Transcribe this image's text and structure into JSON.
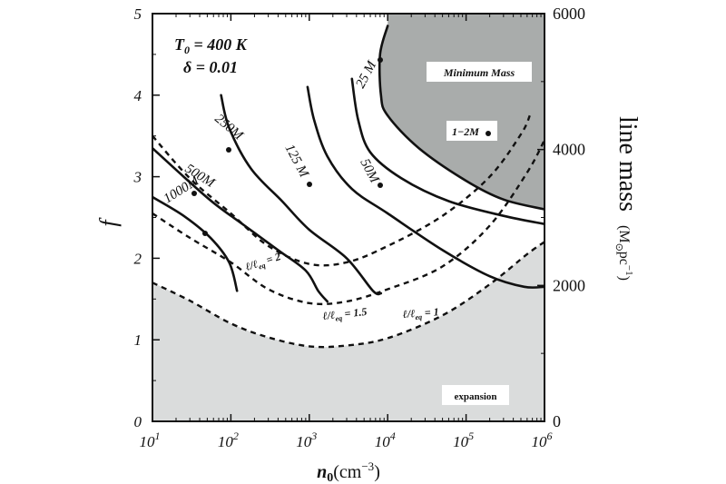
{
  "chart_data": {
    "type": "line",
    "x_scale": "log",
    "xlim": [
      10,
      1000000
    ],
    "ylim": [
      0,
      5
    ],
    "y2lim": [
      0,
      6000
    ],
    "xticks": [
      10,
      100,
      1000,
      10000,
      100000,
      1000000
    ],
    "xtick_labels": [
      {
        "base": "10",
        "exp": "1"
      },
      {
        "base": "10",
        "exp": "2"
      },
      {
        "base": "10",
        "exp": "3"
      },
      {
        "base": "10",
        "exp": "4"
      },
      {
        "base": "10",
        "exp": "5"
      },
      {
        "base": "10",
        "exp": "6"
      }
    ],
    "yticks": [
      "0",
      "1",
      "2",
      "3",
      "4",
      "5"
    ],
    "y2ticks": [
      "0",
      "2000",
      "4000",
      "6000"
    ],
    "xlabel": {
      "var": "n",
      "sub": "0",
      "unit": "(cm",
      "unitexp": "−3",
      "close": ")"
    },
    "ylabel": "f",
    "y2label": {
      "main": "line mass",
      "unit": "(M",
      "unit_sub": "⊙",
      "unit_rest": "pc",
      "unit_exp": "−1",
      "close": ")"
    },
    "params": {
      "t0_prefix": "T",
      "t0_sub": "0",
      "t0_value": " = 400 K",
      "delta_text": "δ =  0.01"
    },
    "annotations": {
      "minimum_mass": "Minimum Mass",
      "one_two": "1−2M",
      "expansion": "expansion"
    },
    "mass_curves": [
      {
        "label": "25 M",
        "points": [
          [
            10000,
            4.85
          ],
          [
            8000,
            4.5
          ],
          [
            8200,
            4.0
          ],
          [
            10000,
            3.75
          ],
          [
            25000,
            3.35
          ],
          [
            100000,
            2.95
          ],
          [
            300000,
            2.72
          ],
          [
            1000000,
            2.6
          ]
        ]
      },
      {
        "label": "50M",
        "points": [
          [
            3500,
            4.2
          ],
          [
            4200,
            3.7
          ],
          [
            6000,
            3.3
          ],
          [
            15000,
            2.98
          ],
          [
            60000,
            2.7
          ],
          [
            300000,
            2.52
          ],
          [
            1000000,
            2.42
          ]
        ]
      },
      {
        "label": "125 M",
        "points": [
          [
            950,
            4.1
          ],
          [
            1150,
            3.7
          ],
          [
            1700,
            3.25
          ],
          [
            3500,
            2.85
          ],
          [
            10000,
            2.55
          ],
          [
            50000,
            2.1
          ],
          [
            200000,
            1.78
          ],
          [
            550000,
            1.65
          ],
          [
            1000000,
            1.65
          ]
        ]
      },
      {
        "label": "250M",
        "points": [
          [
            75,
            4.0
          ],
          [
            95,
            3.6
          ],
          [
            180,
            3.1
          ],
          [
            450,
            2.7
          ],
          [
            1000,
            2.35
          ],
          [
            3000,
            2.0
          ],
          [
            6500,
            1.6
          ],
          [
            8200,
            1.57
          ]
        ]
      },
      {
        "label": "500M",
        "points": [
          [
            10,
            3.35
          ],
          [
            25,
            3.0
          ],
          [
            60,
            2.68
          ],
          [
            150,
            2.4
          ],
          [
            400,
            2.1
          ],
          [
            900,
            1.85
          ],
          [
            1300,
            1.6
          ],
          [
            1700,
            1.47
          ]
        ]
      },
      {
        "label": "1000M",
        "points": [
          [
            10,
            2.75
          ],
          [
            25,
            2.52
          ],
          [
            55,
            2.25
          ],
          [
            95,
            1.95
          ],
          [
            120,
            1.6
          ]
        ]
      }
    ],
    "ratio_curves": [
      {
        "label_prefix": "ℓ/ℓ",
        "label_sub": "eq",
        "label_value": " = 2",
        "points": [
          [
            10,
            3.5
          ],
          [
            30,
            2.98
          ],
          [
            100,
            2.55
          ],
          [
            300,
            2.15
          ],
          [
            1000,
            1.93
          ],
          [
            3000,
            1.95
          ],
          [
            10000,
            2.15
          ],
          [
            50000,
            2.52
          ],
          [
            200000,
            3.0
          ],
          [
            500000,
            3.52
          ],
          [
            650000,
            3.75
          ]
        ]
      },
      {
        "label_prefix": "ℓ/ℓ",
        "label_sub": "eq",
        "label_value": " = 1.5",
        "points": [
          [
            10,
            2.55
          ],
          [
            30,
            2.25
          ],
          [
            100,
            1.95
          ],
          [
            300,
            1.62
          ],
          [
            1000,
            1.45
          ],
          [
            3000,
            1.47
          ],
          [
            10000,
            1.62
          ],
          [
            50000,
            1.9
          ],
          [
            200000,
            2.4
          ],
          [
            600000,
            3.05
          ],
          [
            1000000,
            3.45
          ]
        ]
      },
      {
        "label_prefix": "ℓ/ℓ",
        "label_sub": "eq",
        "label_value": " = 1",
        "points": [
          [
            10,
            1.7
          ],
          [
            30,
            1.48
          ],
          [
            100,
            1.2
          ],
          [
            300,
            1.03
          ],
          [
            1000,
            0.92
          ],
          [
            3000,
            0.93
          ],
          [
            10000,
            1.02
          ],
          [
            50000,
            1.3
          ],
          [
            200000,
            1.68
          ],
          [
            600000,
            2.05
          ],
          [
            1000000,
            2.2
          ]
        ]
      }
    ],
    "colors": {
      "minimum_mass_region": "#a9acab",
      "expansion_region": "#dadcdc",
      "curve": "#111111"
    }
  }
}
